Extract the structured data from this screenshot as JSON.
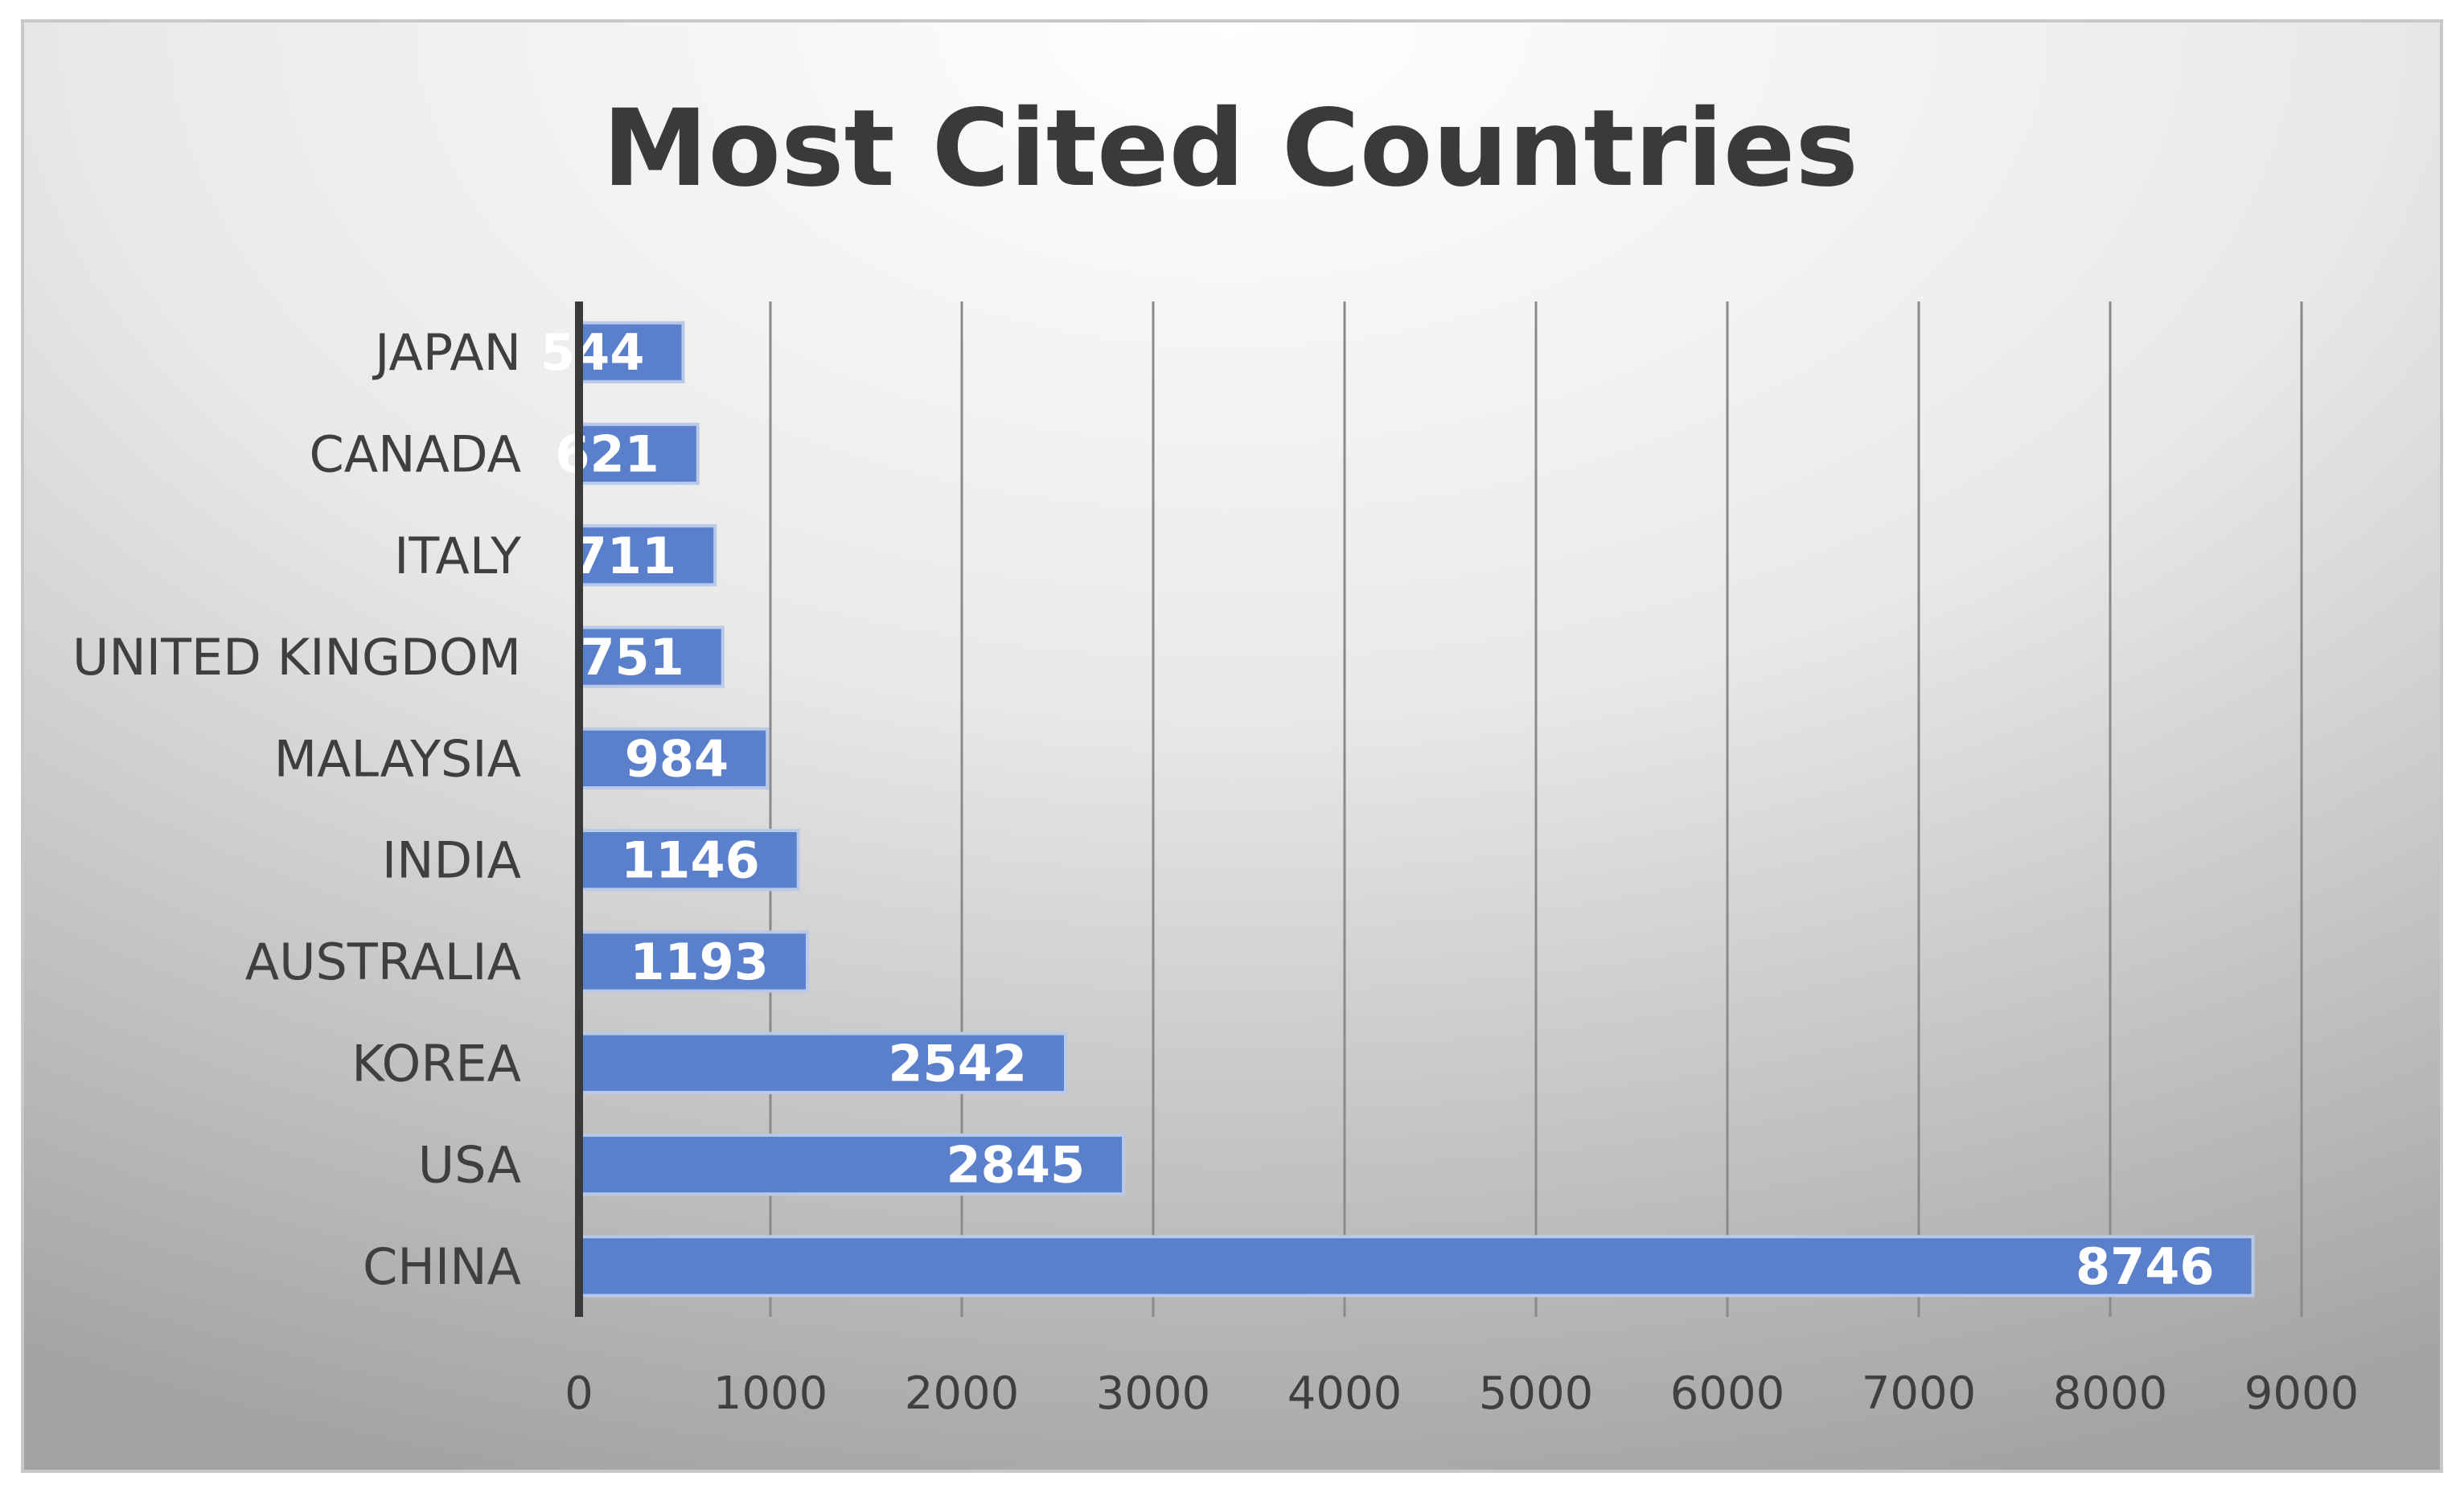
{
  "chart_data": {
    "type": "bar",
    "orientation": "horizontal",
    "title": "Most Cited Countries",
    "xlabel": "",
    "ylabel": "",
    "categories": [
      "CHINA",
      "USA",
      "KOREA",
      "AUSTRALIA",
      "INDIA",
      "MALAYSIA",
      "UNITED KINGDOM",
      "ITALY",
      "CANADA",
      "JAPAN"
    ],
    "values": [
      8746,
      2845,
      2542,
      1193,
      1146,
      984,
      751,
      711,
      621,
      544
    ],
    "xlim": [
      0,
      9000
    ],
    "x_ticks": [
      "0",
      "1000",
      "2000",
      "3000",
      "4000",
      "5000",
      "6000",
      "7000",
      "8000",
      "9000"
    ],
    "data_labels": true,
    "grid": "vertical",
    "legend": "none",
    "colors": {
      "bar": "#5b80cb",
      "bar_edge": "#b8c9ea",
      "label_text": "#ffffff",
      "title_text": "#3a3a3a",
      "axis_text": "#3f3f3f",
      "gridline": "#8a8a8a",
      "axis_line": "#3a3a3a",
      "border": "#c8c8c8",
      "background_light": "#ffffff",
      "background_dark": "#a3a3a3"
    }
  }
}
